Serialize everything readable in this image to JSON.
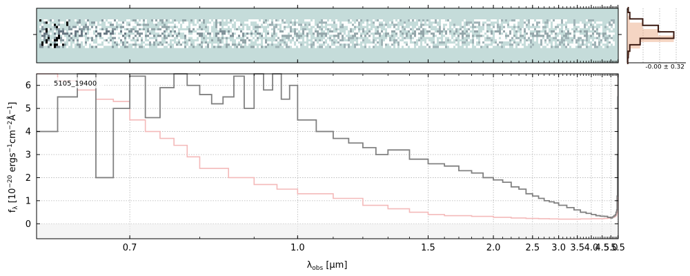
{
  "chart_data": [
    {
      "type": "heatmap",
      "panel": "2d-spectrum",
      "colors": {
        "background": "#c5dcda",
        "emission": "#1a2238",
        "noise_light": "#ffffff"
      },
      "x_ticks_um": [
        0.7,
        1.0,
        1.5,
        2.0,
        2.5,
        3.0,
        3.5,
        4.0,
        4.5,
        5.0,
        5.5
      ]
    },
    {
      "type": "line",
      "panel": "spatial-profile",
      "color": "#3b1a12",
      "fill_color": "#e8a27a",
      "annotation": "-0.00 ± 0.32",
      "profile_offset": [
        -4,
        -3,
        -2,
        -1,
        0,
        1,
        2,
        3,
        4
      ],
      "profile_values": [
        0.02,
        0.05,
        0.3,
        0.6,
        0.9,
        0.25,
        0.05,
        0.02,
        0.01
      ]
    },
    {
      "type": "line",
      "panel": "1d-spectrum",
      "label": "5105_19400",
      "xlabel": "λ_obs [μm]",
      "ylabel": "f_λ [10^-20 ergs^-1cm^-2Å^-1]",
      "xlim": [
        0.6,
        5.52
      ],
      "ylim": [
        -0.65,
        6.5
      ],
      "x_scale": "reciprocal",
      "grid": true,
      "x_ticks": [
        "0.7",
        "1.0",
        "1.5",
        "2.0",
        "2.5",
        "3.0",
        "3.5",
        "4.0",
        "4.5",
        "5.0",
        "5.5"
      ],
      "y_ticks": [
        "0",
        "1",
        "2",
        "3",
        "4",
        "5",
        "6"
      ],
      "series": [
        {
          "color": "#808080",
          "x": [
            0.6,
            0.62,
            0.64,
            0.66,
            0.68,
            0.7,
            0.72,
            0.74,
            0.76,
            0.78,
            0.8,
            0.82,
            0.84,
            0.86,
            0.88,
            0.9,
            0.92,
            0.94,
            0.96,
            0.98,
            1.0,
            1.05,
            1.1,
            1.15,
            1.2,
            1.25,
            1.3,
            1.4,
            1.5,
            1.6,
            1.7,
            1.8,
            1.9,
            2.0,
            2.1,
            2.2,
            2.3,
            2.4,
            2.5,
            2.6,
            2.7,
            2.8,
            2.9,
            3.0,
            3.2,
            3.4,
            3.6,
            3.8,
            4.0,
            4.2,
            4.4,
            4.6,
            4.8,
            5.0,
            5.1,
            5.2,
            5.3,
            5.35,
            5.4,
            5.43,
            5.46,
            5.48,
            5.5
          ],
          "y": [
            4.0,
            5.5,
            6.5,
            2.0,
            5.0,
            6.4,
            4.6,
            5.9,
            6.5,
            6.0,
            5.6,
            5.2,
            5.5,
            6.4,
            5.0,
            6.5,
            5.8,
            6.5,
            5.4,
            6.0,
            4.5,
            4.0,
            3.7,
            3.5,
            3.3,
            3.0,
            3.2,
            2.8,
            2.6,
            2.5,
            2.3,
            2.2,
            2.0,
            1.9,
            1.8,
            1.6,
            1.5,
            1.3,
            1.2,
            1.1,
            1.0,
            0.95,
            0.9,
            0.8,
            0.7,
            0.6,
            0.5,
            0.45,
            0.4,
            0.35,
            0.33,
            0.32,
            0.28,
            0.25,
            0.3,
            0.35,
            0.4,
            0.5,
            0.6,
            1.2,
            3.0,
            5.5,
            6.5
          ]
        },
        {
          "color": "#f4b9b9",
          "x": [
            0.6,
            0.62,
            0.64,
            0.66,
            0.68,
            0.7,
            0.72,
            0.74,
            0.76,
            0.78,
            0.8,
            0.85,
            0.9,
            0.95,
            1.0,
            1.1,
            1.2,
            1.3,
            1.4,
            1.5,
            1.6,
            1.8,
            2.0,
            2.2,
            2.4,
            2.6,
            2.8,
            3.0,
            3.2,
            3.4,
            3.6,
            3.8,
            4.0,
            4.2,
            4.4,
            4.6,
            4.8,
            5.0,
            5.1,
            5.2,
            5.3,
            5.4,
            5.44,
            5.47,
            5.5
          ],
          "y": [
            6.5,
            6.2,
            5.8,
            5.4,
            5.3,
            4.5,
            4.0,
            3.7,
            3.4,
            2.9,
            2.4,
            2.0,
            1.7,
            1.5,
            1.3,
            1.1,
            0.8,
            0.65,
            0.5,
            0.4,
            0.35,
            0.32,
            0.28,
            0.25,
            0.23,
            0.22,
            0.21,
            0.2,
            0.2,
            0.2,
            0.21,
            0.21,
            0.22,
            0.22,
            0.22,
            0.23,
            0.24,
            0.26,
            0.28,
            0.3,
            0.35,
            0.45,
            0.8,
            2.0,
            6.5
          ]
        }
      ]
    }
  ]
}
